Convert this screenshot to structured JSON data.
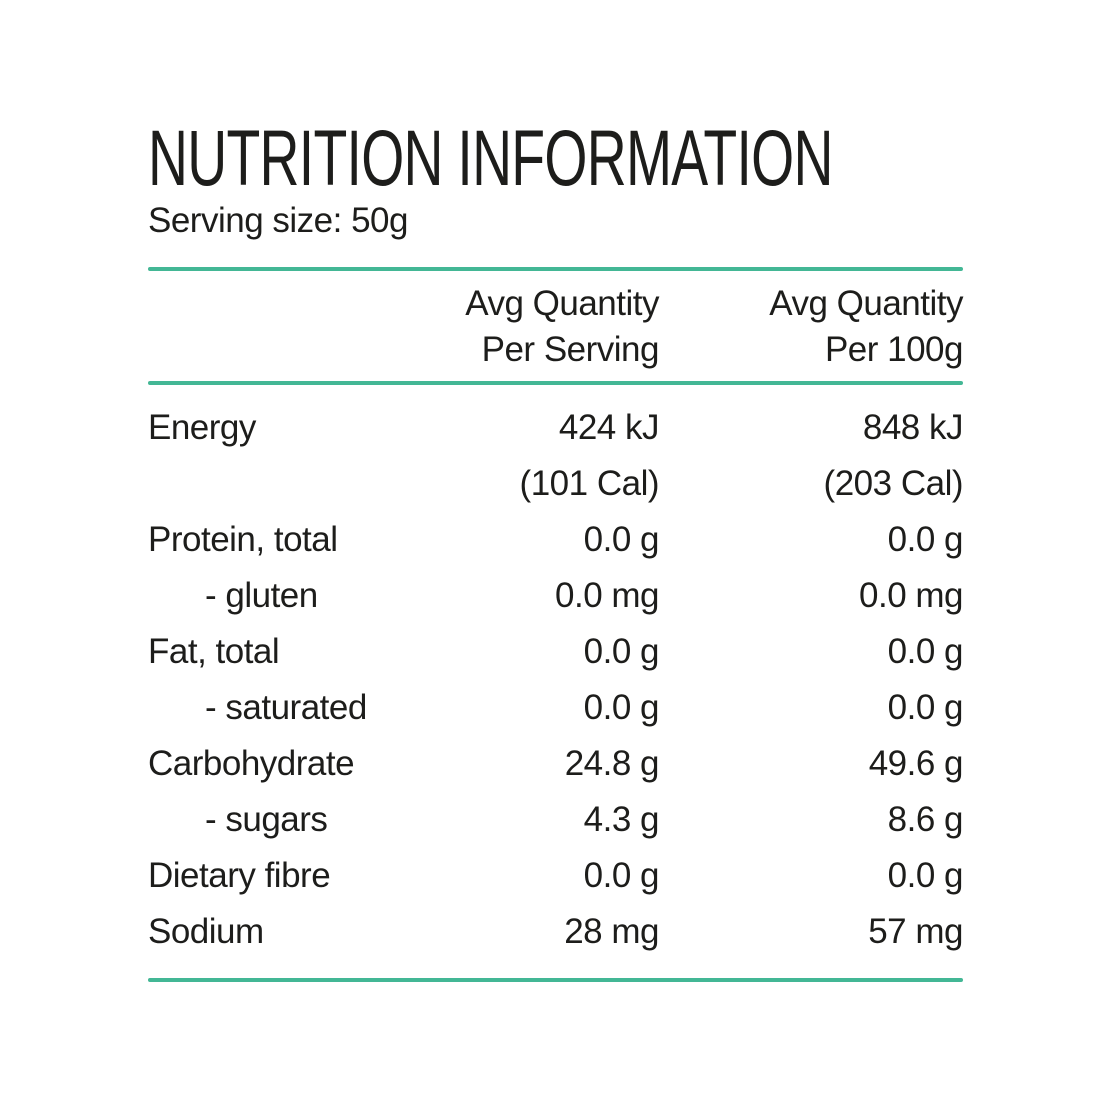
{
  "page": {
    "background_color": "#ffffff",
    "accent_color": "#43b795",
    "text_color": "#1d1d1b"
  },
  "header": {
    "title": "NUTRITION INFORMATION",
    "serving_size": "Serving size: 50g"
  },
  "table": {
    "columns": [
      {
        "line1": "Avg Quantity",
        "line2": "Per Serving"
      },
      {
        "line1": "Avg Quantity",
        "line2": "Per 100g"
      }
    ],
    "rows": [
      {
        "label": "Energy",
        "indent": false,
        "per_serving": "424 kJ",
        "per_100g": "848 kJ"
      },
      {
        "label": "",
        "indent": false,
        "per_serving": "(101 Cal)",
        "per_100g": "(203 Cal)"
      },
      {
        "label": "Protein, total",
        "indent": false,
        "per_serving": "0.0 g",
        "per_100g": "0.0 g"
      },
      {
        "label": "- gluten",
        "indent": true,
        "per_serving": "0.0 mg",
        "per_100g": "0.0 mg"
      },
      {
        "label": "Fat, total",
        "indent": false,
        "per_serving": "0.0 g",
        "per_100g": "0.0 g"
      },
      {
        "label": "- saturated",
        "indent": true,
        "per_serving": "0.0 g",
        "per_100g": "0.0 g"
      },
      {
        "label": "Carbohydrate",
        "indent": false,
        "per_serving": "24.8 g",
        "per_100g": "49.6 g"
      },
      {
        "label": "- sugars",
        "indent": true,
        "per_serving": "4.3 g",
        "per_100g": "8.6 g"
      },
      {
        "label": "Dietary fibre",
        "indent": false,
        "per_serving": "0.0 g",
        "per_100g": "0.0 g"
      },
      {
        "label": "Sodium",
        "indent": false,
        "per_serving": "28 mg",
        "per_100g": "57 mg"
      }
    ]
  }
}
